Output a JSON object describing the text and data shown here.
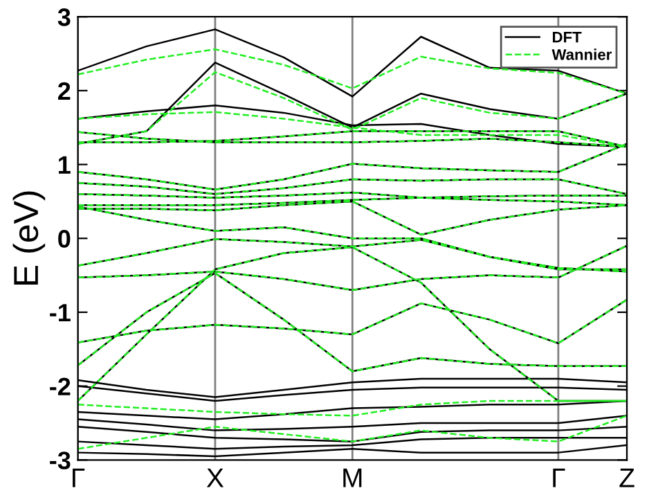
{
  "chart_data": {
    "type": "line",
    "ylabel": "E (eV)",
    "categories": [
      "Γ",
      null,
      "X",
      null,
      "M",
      null,
      null,
      "Γ",
      "Z"
    ],
    "ylim": [
      -3,
      3
    ],
    "yticks": [
      -3,
      -2,
      -1,
      0,
      1,
      2,
      3
    ],
    "legend": "top right",
    "grid": "x",
    "series": [
      {
        "name": "DFT",
        "color": "#000000",
        "line_style": "solid",
        "values": [
          2.27,
          2.6,
          2.83,
          2.45,
          1.92,
          2.73,
          2.31,
          2.27,
          1.96
        ]
      },
      {
        "color": "#000000",
        "line_style": "solid",
        "values": [
          1.28,
          1.45,
          2.38,
          1.95,
          1.5,
          1.96,
          1.75,
          1.62,
          1.96
        ]
      },
      {
        "color": "#000000",
        "line_style": "solid",
        "values": [
          1.62,
          1.72,
          1.8,
          1.7,
          1.53,
          1.55,
          1.4,
          1.28,
          1.24
        ]
      },
      {
        "color": "#000000",
        "line_style": "solid",
        "values": [
          1.44,
          1.35,
          1.3,
          1.3,
          1.3,
          1.32,
          1.35,
          1.3,
          1.24
        ]
      },
      {
        "color": "#000000",
        "line_style": "solid",
        "values": [
          1.3,
          1.3,
          1.32,
          1.38,
          1.45,
          1.45,
          1.45,
          1.45,
          1.24
        ]
      },
      {
        "color": "#000000",
        "line_style": "solid",
        "values": [
          0.9,
          0.8,
          0.66,
          0.8,
          1.01,
          0.95,
          0.92,
          0.9,
          1.28
        ]
      },
      {
        "color": "#000000",
        "line_style": "solid",
        "values": [
          0.75,
          0.7,
          0.6,
          0.68,
          0.8,
          0.78,
          0.8,
          0.8,
          0.6
        ]
      },
      {
        "color": "#000000",
        "line_style": "solid",
        "values": [
          0.6,
          0.58,
          0.55,
          0.58,
          0.62,
          0.55,
          0.57,
          0.58,
          0.58
        ]
      },
      {
        "color": "#000000",
        "line_style": "solid",
        "values": [
          0.45,
          0.45,
          0.45,
          0.48,
          0.52,
          0.55,
          0.52,
          0.5,
          0.45
        ]
      },
      {
        "color": "#000000",
        "line_style": "solid",
        "values": [
          0.4,
          0.4,
          0.38,
          0.45,
          0.5,
          0.05,
          0.25,
          0.39,
          0.45
        ]
      },
      {
        "color": "#000000",
        "line_style": "solid",
        "values": [
          0.43,
          0.25,
          0.1,
          0.15,
          0.0,
          0.0,
          -0.25,
          -0.42,
          -0.42
        ]
      },
      {
        "color": "#000000",
        "line_style": "solid",
        "values": [
          -0.37,
          -0.2,
          -0.01,
          -0.05,
          -0.11,
          -0.02,
          -0.25,
          -0.4,
          -0.45
        ]
      },
      {
        "color": "#000000",
        "line_style": "solid",
        "values": [
          -0.53,
          -0.5,
          -0.45,
          -0.55,
          -0.7,
          -0.55,
          -0.5,
          -0.53,
          -0.1
        ]
      },
      {
        "color": "#000000",
        "line_style": "solid",
        "values": [
          -2.2,
          -1.3,
          -0.42,
          -0.2,
          -0.12,
          -0.6,
          -1.5,
          -2.2,
          -2.2
        ]
      },
      {
        "color": "#000000",
        "line_style": "solid",
        "values": [
          -1.41,
          -1.25,
          -1.17,
          -1.22,
          -1.3,
          -0.88,
          -1.1,
          -1.42,
          -0.83
        ]
      },
      {
        "color": "#000000",
        "line_style": "solid",
        "values": [
          -1.72,
          -1.0,
          -0.47,
          -1.1,
          -1.8,
          -1.62,
          -1.7,
          -1.73,
          -1.73
        ]
      },
      {
        "color": "#000000",
        "line_style": "solid",
        "values": [
          -1.92,
          -2.05,
          -2.15,
          -2.05,
          -1.95,
          -1.9,
          -1.9,
          -1.9,
          -1.95
        ]
      },
      {
        "color": "#000000",
        "line_style": "solid",
        "values": [
          -2.0,
          -2.1,
          -2.2,
          -2.12,
          -2.05,
          -2.02,
          -2.02,
          -2.02,
          -2.05
        ]
      },
      {
        "color": "#000000",
        "line_style": "solid",
        "values": [
          -2.35,
          -2.4,
          -2.45,
          -2.38,
          -2.3,
          -2.28,
          -2.25,
          -2.25,
          -2.2
        ]
      },
      {
        "color": "#000000",
        "line_style": "solid",
        "values": [
          -2.45,
          -2.52,
          -2.6,
          -2.58,
          -2.55,
          -2.5,
          -2.5,
          -2.5,
          -2.4
        ]
      },
      {
        "color": "#000000",
        "line_style": "solid",
        "values": [
          -2.55,
          -2.62,
          -2.7,
          -2.72,
          -2.75,
          -2.62,
          -2.6,
          -2.6,
          -2.55
        ]
      },
      {
        "color": "#000000",
        "line_style": "solid",
        "values": [
          -2.75,
          -2.8,
          -2.85,
          -2.82,
          -2.8,
          -2.72,
          -2.7,
          -2.7,
          -2.7
        ]
      },
      {
        "color": "#000000",
        "line_style": "solid",
        "values": [
          -2.9,
          -2.92,
          -2.95,
          -2.9,
          -2.85,
          -2.9,
          -2.9,
          -2.9,
          -2.8
        ]
      },
      {
        "name": "Wannier",
        "color": "#22ee22",
        "line_style": "dashed",
        "values": [
          2.22,
          2.42,
          2.56,
          2.35,
          2.03,
          2.46,
          2.3,
          2.24,
          1.96
        ]
      },
      {
        "color": "#22ee22",
        "line_style": "dashed",
        "values": [
          1.28,
          1.45,
          2.25,
          1.9,
          1.47,
          1.9,
          1.7,
          1.62,
          1.96
        ]
      },
      {
        "color": "#22ee22",
        "line_style": "dashed",
        "values": [
          1.62,
          1.68,
          1.71,
          1.62,
          1.5,
          1.4,
          1.4,
          1.4,
          1.24
        ]
      },
      {
        "color": "#22ee22",
        "line_style": "dashed",
        "values": [
          1.44,
          1.35,
          1.3,
          1.3,
          1.3,
          1.32,
          1.35,
          1.3,
          1.24
        ]
      },
      {
        "color": "#22ee22",
        "line_style": "dashed",
        "values": [
          1.3,
          1.3,
          1.32,
          1.38,
          1.45,
          1.45,
          1.45,
          1.45,
          1.24
        ]
      },
      {
        "color": "#22ee22",
        "line_style": "dashed",
        "values": [
          0.9,
          0.8,
          0.66,
          0.8,
          1.01,
          0.95,
          0.92,
          0.9,
          1.28
        ]
      },
      {
        "color": "#22ee22",
        "line_style": "dashed",
        "values": [
          0.75,
          0.7,
          0.6,
          0.68,
          0.8,
          0.78,
          0.8,
          0.8,
          0.6
        ]
      },
      {
        "color": "#22ee22",
        "line_style": "dashed",
        "values": [
          0.6,
          0.58,
          0.55,
          0.58,
          0.62,
          0.55,
          0.57,
          0.58,
          0.58
        ]
      },
      {
        "color": "#22ee22",
        "line_style": "dashed",
        "values": [
          0.45,
          0.45,
          0.45,
          0.48,
          0.52,
          0.55,
          0.52,
          0.5,
          0.45
        ]
      },
      {
        "color": "#22ee22",
        "line_style": "dashed",
        "values": [
          0.4,
          0.4,
          0.38,
          0.45,
          0.5,
          0.05,
          0.25,
          0.39,
          0.45
        ]
      },
      {
        "color": "#22ee22",
        "line_style": "dashed",
        "values": [
          0.43,
          0.25,
          0.1,
          0.15,
          0.0,
          0.0,
          -0.25,
          -0.42,
          -0.42
        ]
      },
      {
        "color": "#22ee22",
        "line_style": "dashed",
        "values": [
          -0.37,
          -0.2,
          -0.01,
          -0.05,
          -0.11,
          -0.02,
          -0.25,
          -0.4,
          -0.45
        ]
      },
      {
        "color": "#22ee22",
        "line_style": "dashed",
        "values": [
          -0.53,
          -0.5,
          -0.45,
          -0.55,
          -0.7,
          -0.55,
          -0.5,
          -0.53,
          -0.1
        ]
      },
      {
        "color": "#22ee22",
        "line_style": "dashed",
        "values": [
          -2.2,
          -1.3,
          -0.42,
          -0.2,
          -0.12,
          -0.6,
          -1.5,
          -2.2,
          -2.2
        ]
      },
      {
        "color": "#22ee22",
        "line_style": "dashed",
        "values": [
          -1.41,
          -1.25,
          -1.17,
          -1.22,
          -1.3,
          -0.88,
          -1.1,
          -1.42,
          -0.83
        ]
      },
      {
        "color": "#22ee22",
        "line_style": "dashed",
        "values": [
          -1.72,
          -1.0,
          -0.47,
          -1.1,
          -1.8,
          -1.62,
          -1.7,
          -1.73,
          -1.73
        ]
      },
      {
        "color": "#22ee22",
        "line_style": "dashed",
        "values": [
          -2.25,
          -2.3,
          -2.35,
          -2.38,
          -2.4,
          -2.25,
          -2.2,
          -2.2,
          -2.2
        ]
      },
      {
        "color": "#22ee22",
        "line_style": "dashed",
        "values": [
          -2.85,
          -2.7,
          -2.55,
          -2.65,
          -2.75,
          -2.6,
          -2.7,
          -2.75,
          -2.4
        ]
      }
    ]
  }
}
